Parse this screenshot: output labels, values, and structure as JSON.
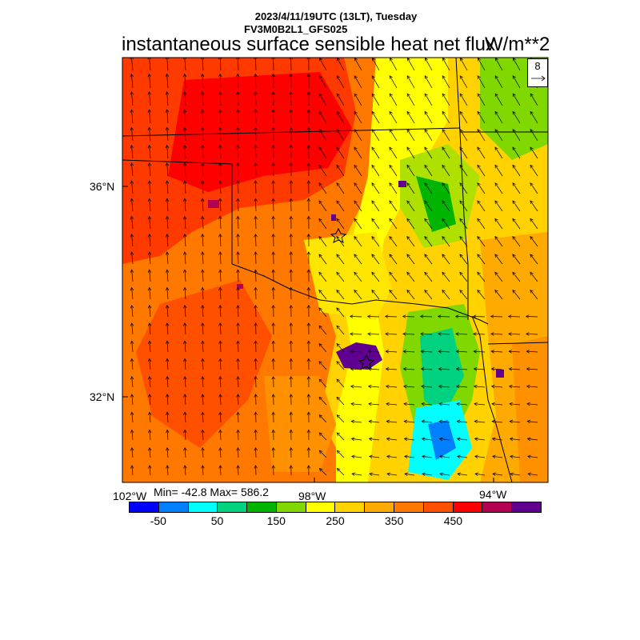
{
  "header": {
    "line1": "2023/4/11/19UTC (13LT), Tuesday",
    "line2": "FV3M0B2L1_GFS025",
    "title": "instantaneous surface sensible heat net flux",
    "units": "W/m**2"
  },
  "map": {
    "lat_labels": [
      "36°N",
      "32°N"
    ],
    "lon_labels": [
      "102°W",
      "98°W",
      "94°W"
    ],
    "field_min": -42.8,
    "field_max": 586.2,
    "min_max_text": "Min= -42.8 Max= 586.2",
    "vector_reference": "8"
  },
  "colorbar": {
    "colors": [
      "#0000ff",
      "#0080ff",
      "#00ffff",
      "#00d27f",
      "#00b400",
      "#80d800",
      "#ffff00",
      "#ffd200",
      "#ffaa00",
      "#ff7800",
      "#ff5000",
      "#ff0000",
      "#b40050",
      "#600090"
    ],
    "labels": [
      "-50",
      "50",
      "150",
      "250",
      "350",
      "450"
    ]
  }
}
